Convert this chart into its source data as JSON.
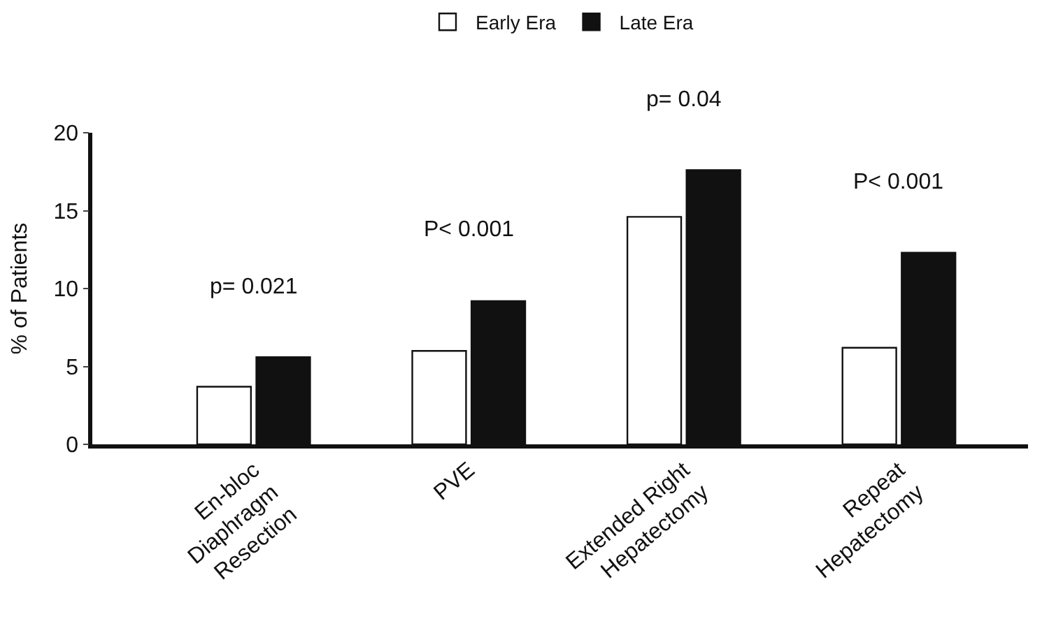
{
  "chart_data": {
    "type": "bar",
    "ylabel": "% of Patients",
    "categories": [
      "En-bloc Diaphragm Resection",
      "PVE",
      "Extended Right Hepatectomy",
      "Repeat Hepatectomy"
    ],
    "series": [
      {
        "name": "Early Era",
        "color": "#ffffff",
        "values": [
          3.7,
          6.0,
          14.6,
          6.2
        ]
      },
      {
        "name": "Late Era",
        "color": "#111111",
        "values": [
          5.6,
          9.2,
          17.6,
          12.3
        ]
      }
    ],
    "ylim": [
      0,
      20
    ],
    "yticks": [
      0,
      5,
      10,
      15,
      20
    ],
    "legend": "top",
    "annotations": [
      "p= 0.021",
      "P< 0.001",
      "p= 0.04",
      "P< 0.001"
    ]
  }
}
